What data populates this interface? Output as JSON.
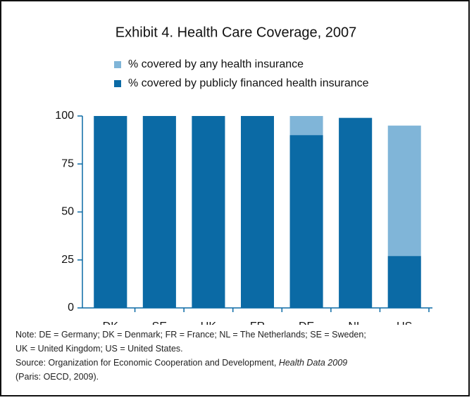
{
  "chart_data": {
    "type": "bar",
    "barmode": "overlay",
    "title": "Exhibit 4. Health Care Coverage, 2007",
    "categories": [
      "DK",
      "SE",
      "UK",
      "FR",
      "DE",
      "NL",
      "US"
    ],
    "series": [
      {
        "name": "% covered by any health insurance",
        "color": "#80b5d8",
        "values": [
          100,
          100,
          100,
          100,
          100,
          99,
          95
        ]
      },
      {
        "name": "% covered by publicly financed health insurance",
        "color": "#0b6aa5",
        "values": [
          100,
          100,
          100,
          100,
          90,
          99,
          27
        ]
      }
    ],
    "ylim": [
      0,
      100
    ],
    "yticks": [
      0,
      25,
      50,
      75,
      100
    ],
    "grid": false
  },
  "notes": [
    "Note: DE = Germany; DK = Denmark; FR = France; NL = The Netherlands; SE = Sweden;",
    "UK = United Kingdom; US = United States."
  ],
  "source": {
    "before": "Source: Organization for Economic Cooperation and Development, ",
    "italic": "Health Data 2009",
    "after": "(Paris: OECD, 2009)."
  }
}
